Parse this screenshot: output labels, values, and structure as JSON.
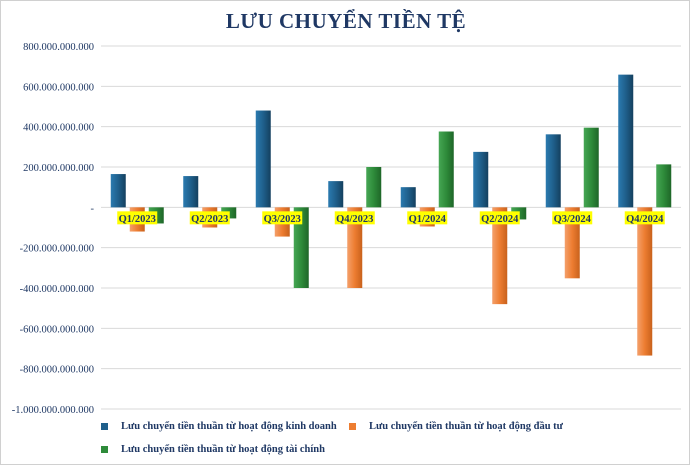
{
  "chart_data": {
    "type": "bar",
    "title": "LƯU CHUYỂN TIỀN TỆ",
    "categories": [
      "Q1/2023",
      "Q2/2023",
      "Q3/2023",
      "Q4/2023",
      "Q1/2024",
      "Q2/2024",
      "Q3/2024",
      "Q4/2024"
    ],
    "series": [
      {
        "name": "Lưu chuyển tiền thuần từ hoạt động kinh doanh",
        "color": "#1f5f8b",
        "values": [
          165000000000,
          155000000000,
          480000000000,
          130000000000,
          100000000000,
          275000000000,
          362000000000,
          658000000000
        ]
      },
      {
        "name": "Lưu chuyển tiền thuần từ hoạt động đầu tư",
        "color": "#ed7d31",
        "values": [
          -120000000000,
          -100000000000,
          -145000000000,
          -400000000000,
          -95000000000,
          -480000000000,
          -352000000000,
          -735000000000
        ]
      },
      {
        "name": "Lưu chuyển tiền thuần từ hoạt động tài chính",
        "color": "#2e8b3a",
        "values": [
          -80000000000,
          -55000000000,
          -400000000000,
          200000000000,
          376000000000,
          -60000000000,
          395000000000,
          213000000000
        ]
      }
    ],
    "ylim": [
      -1000000000000,
      800000000000
    ],
    "yticks": [
      800000000000,
      600000000000,
      400000000000,
      200000000000,
      0,
      -200000000000,
      -400000000000,
      -600000000000,
      -800000000000,
      -1000000000000
    ],
    "ytick_labels": [
      "800.000.000.000",
      "600.000.000.000",
      "400.000.000.000",
      "200.000.000.000",
      "-",
      "-200.000.000.000",
      "-400.000.000.000",
      "-600.000.000.000",
      "-800.000.000.000",
      "-1.000.000.000.000"
    ],
    "xlabel": "",
    "ylabel": "",
    "grid": true,
    "legend_position": "bottom-left"
  }
}
